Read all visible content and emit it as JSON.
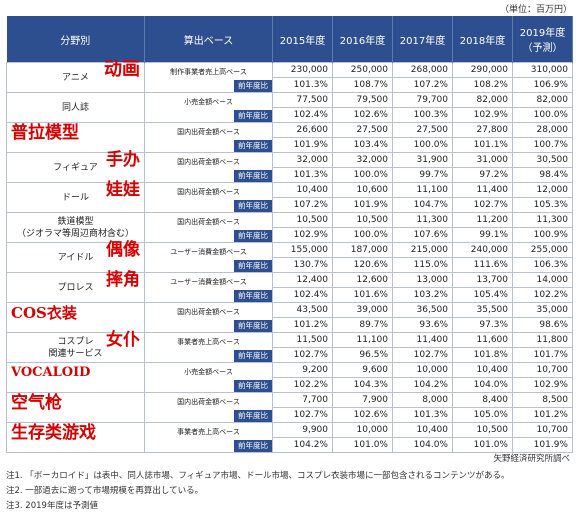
{
  "unit": "（単位：百万円）",
  "headers": {
    "category": "分野別",
    "base": "算出ベース",
    "y2015": "2015年度",
    "y2016": "2016年度",
    "y2017": "2017年度",
    "y2018": "2018年度",
    "y2019a": "2019年度",
    "y2019b": "（予測）"
  },
  "yoy_label": "前年度比",
  "rows": [
    {
      "cat": "アニメ",
      "zh": "动画",
      "base": "制作事業者売上高ベース",
      "values": [
        "230,000",
        "250,000",
        "268,000",
        "290,000",
        "310,000"
      ],
      "yoy": [
        "101.3%",
        "108.7%",
        "107.2%",
        "108.2%",
        "106.9%"
      ]
    },
    {
      "cat": "同人誌",
      "zh": "",
      "base": "小売金額ベース",
      "values": [
        "77,500",
        "79,500",
        "79,700",
        "82,000",
        "82,000"
      ],
      "yoy": [
        "102.4%",
        "102.6%",
        "100.3%",
        "102.9%",
        "100.0%"
      ]
    },
    {
      "cat": "",
      "zh": "普拉模型",
      "base": "国内出荷金額ベース",
      "values": [
        "26,600",
        "27,500",
        "27,500",
        "27,800",
        "28,000"
      ],
      "yoy": [
        "101.9%",
        "103.4%",
        "100.0%",
        "101.1%",
        "100.7%"
      ]
    },
    {
      "cat": "フィギュア",
      "zh": "手办",
      "base": "国内出荷金額ベース",
      "values": [
        "32,000",
        "32,000",
        "31,900",
        "31,000",
        "30,500"
      ],
      "yoy": [
        "101.3%",
        "100.0%",
        "99.7%",
        "97.2%",
        "98.4%"
      ]
    },
    {
      "cat": "ドール",
      "zh": "娃娃",
      "base": "国内出荷金額ベース",
      "values": [
        "10,400",
        "10,600",
        "11,100",
        "11,400",
        "12,000"
      ],
      "yoy": [
        "107.2%",
        "101.9%",
        "104.7%",
        "102.7%",
        "105.3%"
      ]
    },
    {
      "cat": "鉄道模型\n（ジオラマ等周辺商材含む）",
      "zh": "",
      "base": "国内出荷金額ベース",
      "values": [
        "10,500",
        "10,500",
        "11,300",
        "11,200",
        "11,300"
      ],
      "yoy": [
        "102.9%",
        "100.0%",
        "107.6%",
        "99.1%",
        "100.9%"
      ]
    },
    {
      "cat": "アイドル",
      "zh": "偶像",
      "base": "ユーザー消費金額ベース",
      "values": [
        "155,000",
        "187,000",
        "215,000",
        "240,000",
        "255,000"
      ],
      "yoy": [
        "130.7%",
        "120.6%",
        "115.0%",
        "111.6%",
        "106.3%"
      ]
    },
    {
      "cat": "プロレス",
      "zh": "摔角",
      "base": "ユーザー消費金額ベース",
      "values": [
        "12,400",
        "12,600",
        "13,000",
        "13,700",
        "14,000"
      ],
      "yoy": [
        "102.4%",
        "101.6%",
        "103.2%",
        "105.4%",
        "102.2%"
      ]
    },
    {
      "cat": "",
      "zh": "COS衣装",
      "base": "国内出荷金額ベース",
      "values": [
        "43,500",
        "39,000",
        "36,500",
        "35,500",
        "35,000"
      ],
      "yoy": [
        "101.2%",
        "89.7%",
        "93.6%",
        "97.3%",
        "98.6%"
      ]
    },
    {
      "cat": "コスプレ\n関連サービス",
      "zh": "女仆",
      "base": "事業者売上高ベース",
      "values": [
        "11,500",
        "11,100",
        "11,400",
        "11,600",
        "11,800"
      ],
      "yoy": [
        "102.7%",
        "96.5%",
        "102.7%",
        "101.8%",
        "101.7%"
      ]
    },
    {
      "cat": "",
      "zh": "VOCALOID",
      "base": "小売金額ベース",
      "values": [
        "9,200",
        "9,600",
        "10,000",
        "10,400",
        "10,700"
      ],
      "yoy": [
        "102.2%",
        "104.3%",
        "104.2%",
        "104.0%",
        "102.9%"
      ]
    },
    {
      "cat": "",
      "zh": "空气枪",
      "base": "国内出荷金額ベース",
      "values": [
        "7,700",
        "7,900",
        "8,000",
        "8,400",
        "8,500"
      ],
      "yoy": [
        "102.7%",
        "102.6%",
        "101.3%",
        "105.0%",
        "101.2%"
      ]
    },
    {
      "cat": "",
      "zh": "生存类游戏",
      "base": "事業者売上高ベース",
      "values": [
        "9,900",
        "10,000",
        "10,400",
        "10,500",
        "10,700"
      ],
      "yoy": [
        "104.2%",
        "101.0%",
        "104.0%",
        "101.0%",
        "101.9%"
      ]
    }
  ],
  "source": "矢野経済研究所調べ",
  "notes": [
    "注1. 「ボーカロイド」は表中、同人誌市場、フィギュア市場、ドール市場、コスプレ衣装市場に一部包含されるコンテンツがある。",
    "注2. 一部過去に遡って市場規模を再算出している。",
    "注3. 2019年度は予測値"
  ]
}
